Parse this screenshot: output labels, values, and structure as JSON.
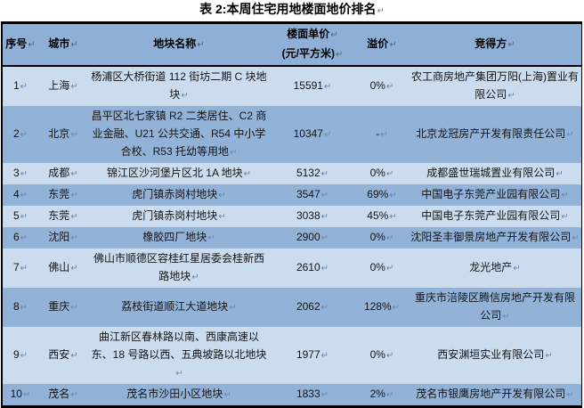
{
  "title": "表 2:本周住宅用地楼面地价排名",
  "marks": {
    "cell_end": "↵"
  },
  "colors": {
    "header_bg": "#8FB0D6",
    "row_light": "#CBDCEF",
    "row_dark": "#92B2D8",
    "border": "#000000",
    "mark": "#6d85ad"
  },
  "table": {
    "columns": [
      {
        "key": "rank",
        "label": "序号"
      },
      {
        "key": "city",
        "label": "城市"
      },
      {
        "key": "plot",
        "label": "地块名称"
      },
      {
        "key": "price",
        "label": "楼面单价",
        "label_line2": "(元/平方米)"
      },
      {
        "key": "premium",
        "label": "溢价"
      },
      {
        "key": "winner",
        "label": "竞得方"
      }
    ],
    "rows": [
      {
        "rank": "1",
        "city": "上海",
        "plot": "杨浦区大桥街道 112 街坊二期 C 块地块",
        "price": "15591",
        "premium": "0%",
        "winner": "农工商房地产集团万阳(上海)置业有限公司"
      },
      {
        "rank": "2",
        "city": "北京",
        "plot": "昌平区北七家镇 R2 二类居住、C2 商业金融、U21 公共交通、R54 中小学合校、R53 托幼等用地",
        "price": "10347",
        "premium": "-",
        "winner": "北京龙冠房产开发有限责任公司"
      },
      {
        "rank": "3",
        "city": "成都",
        "plot": "锦江区沙河堡片区北 1A 地块",
        "price": "5132",
        "premium": "0%",
        "winner": "成都盛世瑞城置业有限公司"
      },
      {
        "rank": "4",
        "city": "东莞",
        "plot": "虎门镇赤岗村地块",
        "price": "3547",
        "premium": "69%",
        "winner": "中国电子东莞产业园有限公司"
      },
      {
        "rank": "5",
        "city": "东莞",
        "plot": "虎门镇赤岗村地块",
        "price": "3038",
        "premium": "45%",
        "winner": "中国电子东莞产业园有限公司"
      },
      {
        "rank": "6",
        "city": "沈阳",
        "plot": "橡胶四厂地块",
        "price": "2900",
        "premium": "0%",
        "winner": "沈阳圣丰御景房地产开发有限公司"
      },
      {
        "rank": "7",
        "city": "佛山",
        "plot": "佛山市顺德区容桂红星居委会桂新西路地块",
        "price": "2610",
        "premium": "0%",
        "winner": "龙光地产"
      },
      {
        "rank": "8",
        "city": "重庆",
        "plot": "荔枝街道顺江大道地块",
        "price": "2062",
        "premium": "128%",
        "winner": "重庆市涪陵区腾信房地产开发有限公司"
      },
      {
        "rank": "9",
        "city": "西安",
        "plot": "曲江新区春林路以南、西康高速以东、18 号路以西、五典坡路以北地块",
        "price": "1977",
        "premium": "0%",
        "winner": "西安渊垣实业有限公司"
      },
      {
        "rank": "10",
        "city": "茂名",
        "plot": "茂名市沙田小区地块",
        "price": "1833",
        "premium": "2%",
        "winner": "茂名市银鹰房地产开发有限公司"
      }
    ]
  }
}
